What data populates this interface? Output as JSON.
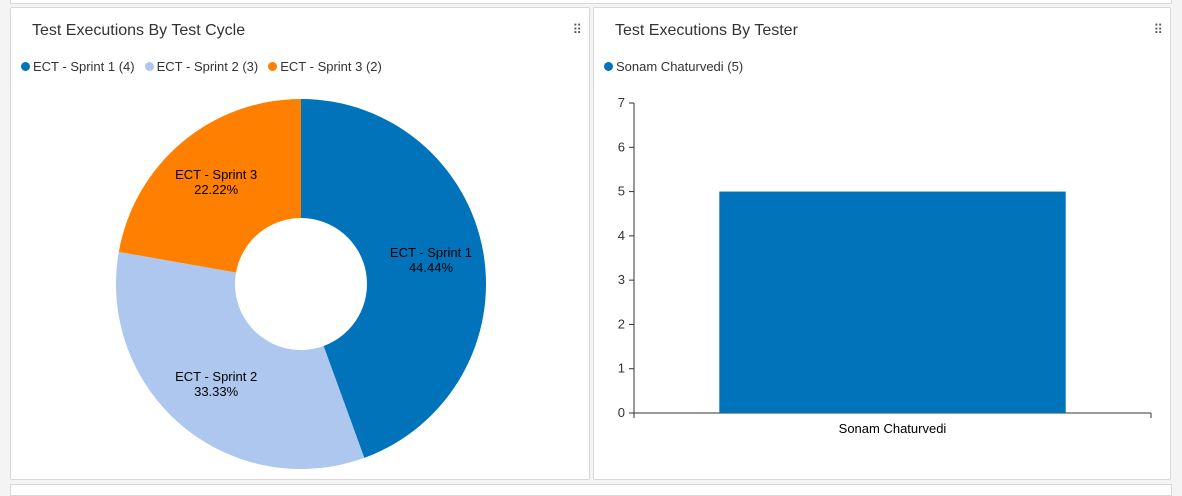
{
  "left_panel": {
    "title": "Test Executions By Test Cycle",
    "handle_icon": "drag-handle-icon"
  },
  "right_panel": {
    "title": "Test Executions By Tester",
    "handle_icon": "drag-handle-icon"
  },
  "chart_data": [
    {
      "type": "pie",
      "donut": true,
      "legend_position": "top-left",
      "slices": [
        {
          "label": "ECT - Sprint 1",
          "legend": "ECT - Sprint 1 (4)",
          "value": 4,
          "percent": "44.44%",
          "color": "#0073bb"
        },
        {
          "label": "ECT - Sprint 2",
          "legend": "ECT - Sprint 2 (3)",
          "value": 3,
          "percent": "33.33%",
          "color": "#aec7ee"
        },
        {
          "label": "ECT - Sprint 3",
          "legend": "ECT - Sprint 3 (2)",
          "value": 2,
          "percent": "22.22%",
          "color": "#ff7f00"
        }
      ]
    },
    {
      "type": "bar",
      "legend_position": "top-left",
      "categories": [
        "Sonam Chaturvedi"
      ],
      "series": [
        {
          "name": "Sonam Chaturvedi",
          "legend": "Sonam Chaturvedi (5)",
          "values": [
            5
          ],
          "color": "#0073bb"
        }
      ],
      "ylim": [
        0,
        7
      ],
      "yticks": [
        "0",
        "1",
        "2",
        "3",
        "4",
        "5",
        "6",
        "7"
      ],
      "grid": false
    }
  ]
}
